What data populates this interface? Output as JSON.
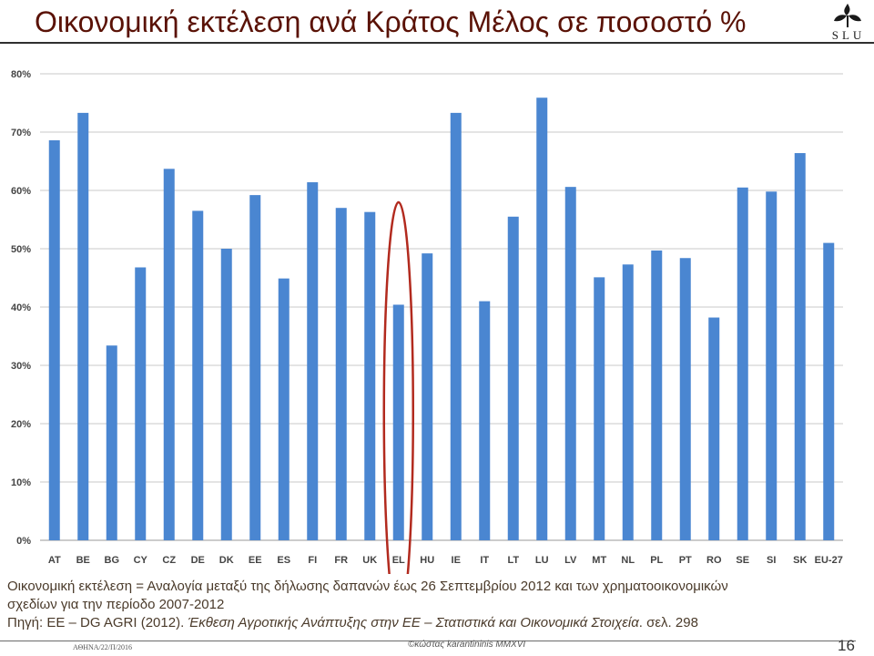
{
  "header": {
    "title": "Οικονομική εκτέλεση ανά Κράτος Μέλος σε ποσοστό %",
    "logo_text": "SLU",
    "logo_icon": "leaf-logo-icon"
  },
  "chart_data": {
    "type": "bar",
    "categories": [
      "AT",
      "BE",
      "BG",
      "CY",
      "CZ",
      "DE",
      "DK",
      "EE",
      "ES",
      "FI",
      "FR",
      "UK",
      "EL",
      "HU",
      "IE",
      "IT",
      "LT",
      "LU",
      "LV",
      "MT",
      "NL",
      "PL",
      "PT",
      "RO",
      "SE",
      "SI",
      "SK",
      "EU-27"
    ],
    "values": [
      68.6,
      73.3,
      33.4,
      46.8,
      63.7,
      56.5,
      50.0,
      59.2,
      44.9,
      61.4,
      57.0,
      56.3,
      40.4,
      49.2,
      73.3,
      41.0,
      55.5,
      75.9,
      60.6,
      45.1,
      47.3,
      49.7,
      48.4,
      38.2,
      60.5,
      59.8,
      66.4,
      51.0
    ],
    "ylim": [
      0,
      80
    ],
    "yticks": [
      0,
      10,
      20,
      30,
      40,
      50,
      60,
      70,
      80
    ],
    "ytick_labels": [
      "0%",
      "10%",
      "20%",
      "30%",
      "40%",
      "50%",
      "60%",
      "70%",
      "80%"
    ],
    "grid": true,
    "bar_color": "#4a86d1",
    "highlight": {
      "category": "EL",
      "marker": "ellipse",
      "color": "#b22a1e"
    }
  },
  "caption": {
    "line1": "Οικονομική εκτέλεση = Αναλογία μεταξύ της δήλωσης δαπανών έως 26 Σεπτεμβρίου 2012 και των χρηματοοικονομικών",
    "line2": "σχεδίων για την περίοδο 2007-2012",
    "source_prefix": "Πηγή: ΕΕ – DG AGRI (2012). ",
    "source_italic": "Έκθεση Αγροτικής Ανάπτυξης στην ΕΕ – Στατιστικά και Οικονομικά Στοιχεία",
    "source_suffix": ". σελ. 298"
  },
  "footer": {
    "left": "ΑΘΗΝΑ/22/Π/2016",
    "center": "©κώστας karantininis MMXVI",
    "page_number": "16"
  }
}
